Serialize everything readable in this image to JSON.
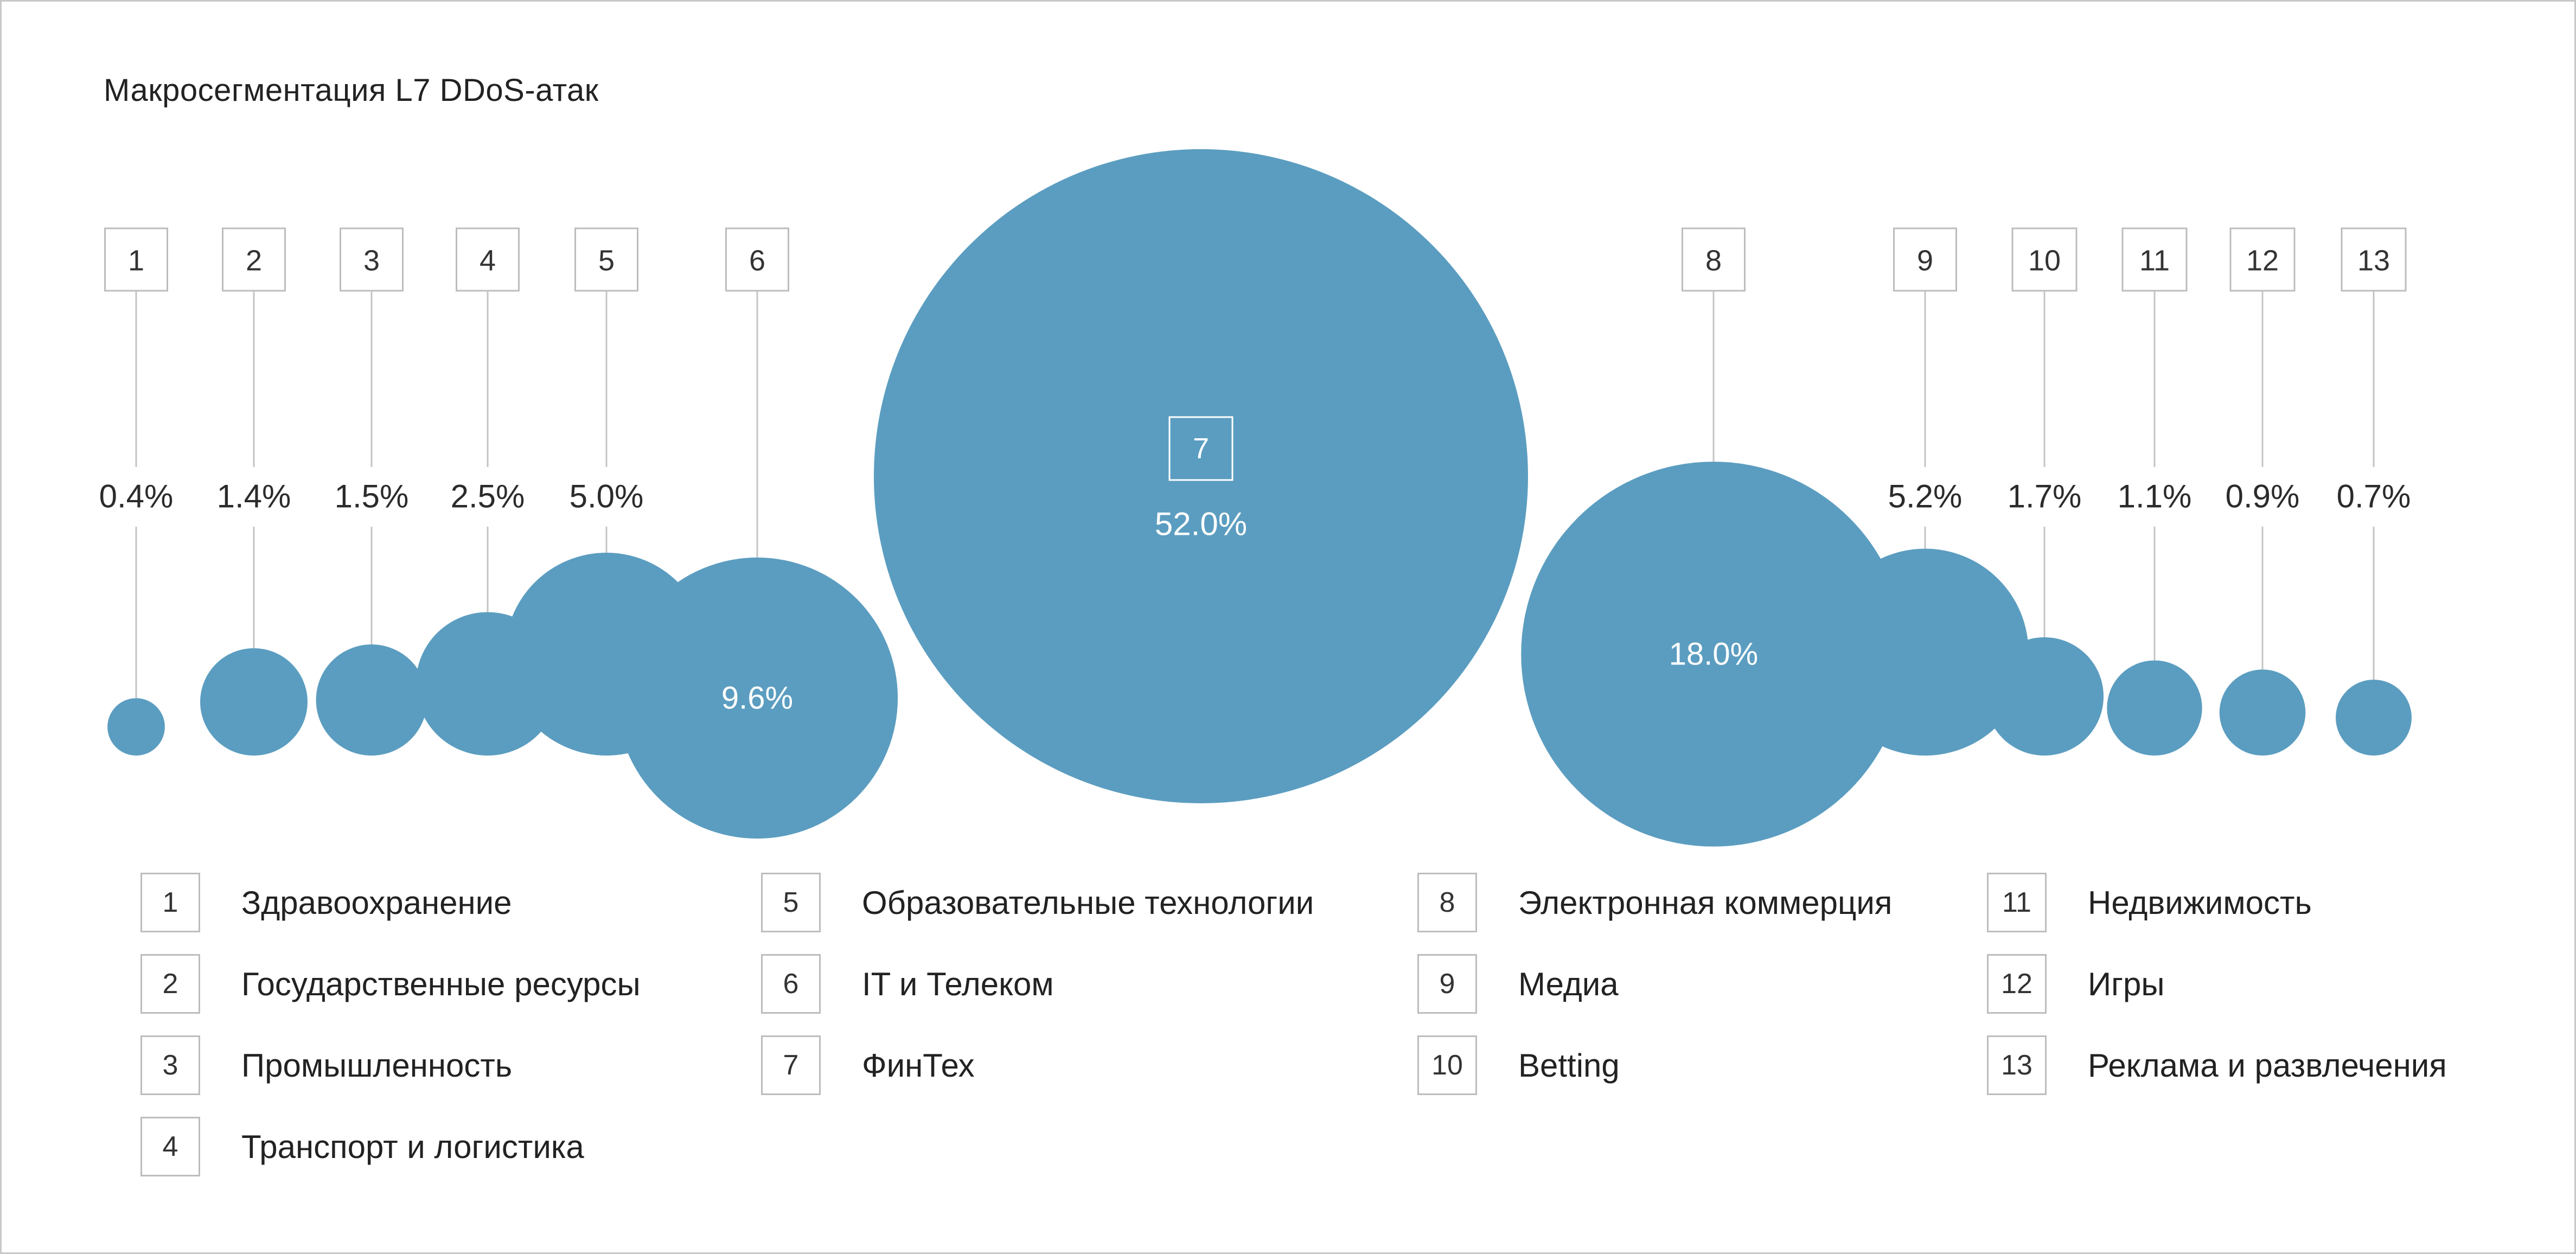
{
  "chart_data": {
    "type": "bubble",
    "title": "Макросегментация L7 DDoS-атак",
    "unit": "%",
    "color": "#5b9dc0",
    "leader_line_color": "#c4c4c4",
    "box_border_color": "#bdbdbd",
    "items": [
      {
        "id": "1",
        "label": "Здравоохранение",
        "value": 0.4,
        "value_label": "0.4%"
      },
      {
        "id": "2",
        "label": "Государственные ресурсы",
        "value": 1.4,
        "value_label": "1.4%"
      },
      {
        "id": "3",
        "label": "Промышленность",
        "value": 1.5,
        "value_label": "1.5%"
      },
      {
        "id": "4",
        "label": "Транспорт и логистика",
        "value": 2.5,
        "value_label": "2.5%"
      },
      {
        "id": "5",
        "label": "Образовательные технологии",
        "value": 5.0,
        "value_label": "5.0%"
      },
      {
        "id": "6",
        "label": "IT и Телеком",
        "value": 9.6,
        "value_label": "9.6%"
      },
      {
        "id": "7",
        "label": "ФинТех",
        "value": 52.0,
        "value_label": "52.0%"
      },
      {
        "id": "8",
        "label": "Электронная коммерция",
        "value": 18.0,
        "value_label": "18.0%"
      },
      {
        "id": "9",
        "label": "Медиа",
        "value": 5.2,
        "value_label": "5.2%"
      },
      {
        "id": "10",
        "label": "Betting",
        "value": 1.7,
        "value_label": "1.7%"
      },
      {
        "id": "11",
        "label": "Недвижимость",
        "value": 1.1,
        "value_label": "1.1%"
      },
      {
        "id": "12",
        "label": "Игры",
        "value": 0.9,
        "value_label": "0.9%"
      },
      {
        "id": "13",
        "label": "Реклама и развлечения",
        "value": 0.7,
        "value_label": "0.7%"
      }
    ]
  }
}
